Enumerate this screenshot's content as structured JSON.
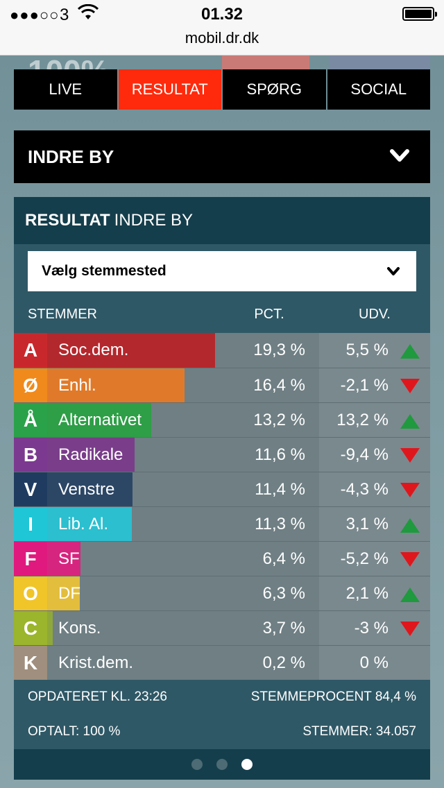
{
  "status": {
    "signal": "●●●○○",
    "carrier": "3",
    "time": "01.32",
    "url": "mobil.dr.dk"
  },
  "behind": {
    "ghost_text": "100%"
  },
  "tabs": [
    {
      "label": "LIVE",
      "active": false
    },
    {
      "label": "RESULTAT",
      "active": true
    },
    {
      "label": "SPØRG",
      "active": false
    },
    {
      "label": "SOCIAL",
      "active": false
    }
  ],
  "district": {
    "label": "INDRE BY"
  },
  "panel": {
    "title_bold": "RESULTAT",
    "title_rest": "INDRE BY",
    "select_label": "Vælg stemmested",
    "col_stemmer": "STEMMER",
    "col_pct": "PCT.",
    "col_udv": "UDV."
  },
  "parties": [
    {
      "letter": "A",
      "name": "Soc.dem.",
      "pct": "19,3 %",
      "udv": "5,5 %",
      "pct_value": 19.3,
      "trend": "up",
      "color": "#b3282d",
      "letter_color": "#c8282c"
    },
    {
      "letter": "Ø",
      "name": "Enhl.",
      "pct": "16,4 %",
      "udv": "-2,1 %",
      "pct_value": 16.4,
      "trend": "down",
      "color": "#e07a2a",
      "letter_color": "#f08a1c"
    },
    {
      "letter": "Å",
      "name": "Alternativet",
      "pct": "13,2 %",
      "udv": "13,2 %",
      "pct_value": 13.2,
      "trend": "up",
      "color": "#2e9e47",
      "letter_color": "#2aa24a"
    },
    {
      "letter": "B",
      "name": "Radikale",
      "pct": "11,6 %",
      "udv": "-9,4 %",
      "pct_value": 11.6,
      "trend": "down",
      "color": "#7a3d8a",
      "letter_color": "#7b3a8f"
    },
    {
      "letter": "V",
      "name": "Venstre",
      "pct": "11,4 %",
      "udv": "-4,3 %",
      "pct_value": 11.4,
      "trend": "down",
      "color": "#2c4766",
      "letter_color": "#1f3c60"
    },
    {
      "letter": "I",
      "name": "Lib. Al.",
      "pct": "11,3 %",
      "udv": "3,1 %",
      "pct_value": 11.3,
      "trend": "up",
      "color": "#2bbfcf",
      "letter_color": "#1fc6d6"
    },
    {
      "letter": "F",
      "name": "SF",
      "pct": "6,4 %",
      "udv": "-5,2 %",
      "pct_value": 6.4,
      "trend": "down",
      "color": "#d6257f",
      "letter_color": "#e0197f"
    },
    {
      "letter": "O",
      "name": "DF",
      "pct": "6,3 %",
      "udv": "2,1 %",
      "pct_value": 6.3,
      "trend": "up",
      "color": "#e3bd3c",
      "letter_color": "#f0c52a"
    },
    {
      "letter": "C",
      "name": "Kons.",
      "pct": "3,7 %",
      "udv": "-3 %",
      "pct_value": 3.7,
      "trend": "down",
      "color": "#8fa83a",
      "letter_color": "#9bb52c"
    },
    {
      "letter": "K",
      "name": "Krist.dem.",
      "pct": "0,2 %",
      "udv": "0 %",
      "pct_value": 0.2,
      "trend": "none",
      "color": "#9a8c7c",
      "letter_color": "#a08f7e"
    }
  ],
  "footer": {
    "updated": "OPDATERET KL. 23:26",
    "turnout": "STEMMEPROCENT 84,4 %",
    "counted": "OPTALT: 100 %",
    "votes": "STEMMER: 34.057"
  },
  "pager": {
    "count": 3,
    "active": 2
  },
  "colors": {
    "accent": "#ff2a0c",
    "up": "#1f9a3e",
    "down": "#e0161d"
  }
}
